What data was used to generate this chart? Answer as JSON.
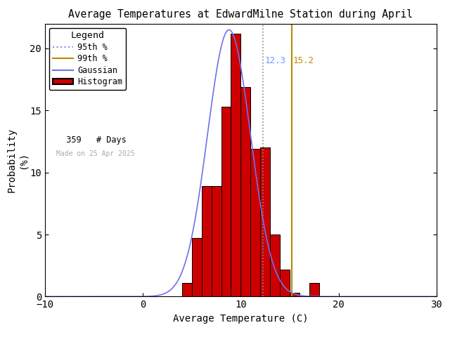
{
  "title": "Average Temperatures at EdwardMilne Station during April",
  "xlabel": "Average Temperature (C)",
  "ylabel": "Probability\n(%)",
  "xlim": [
    -10,
    30
  ],
  "ylim": [
    0,
    22
  ],
  "xticks": [
    -10,
    0,
    10,
    20,
    30
  ],
  "yticks": [
    0,
    5,
    10,
    15,
    20
  ],
  "bin_edges": [
    2,
    3,
    4,
    5,
    6,
    7,
    8,
    9,
    10,
    11,
    12,
    13,
    14,
    15,
    16,
    17,
    18
  ],
  "bin_heights": [
    0.0,
    0.0,
    1.1,
    4.7,
    8.9,
    8.9,
    15.3,
    21.2,
    16.9,
    11.9,
    12.0,
    5.0,
    2.2,
    0.3,
    0.0,
    1.1
  ],
  "hist_color": "#cc0000",
  "hist_edgecolor": "#000000",
  "gaussian_color": "#7070ee",
  "gaussian_mean": 8.8,
  "gaussian_std": 2.2,
  "gaussian_amplitude": 21.5,
  "p95_value": 12.3,
  "p99_value": 15.2,
  "p95_color": "#8888ff",
  "p99_color": "#bb8800",
  "p95_label_color": "#6699ff",
  "p99_label_color": "#bb8800",
  "n_days": 359,
  "watermark": "Made on 25 Apr 2025",
  "watermark_color": "#aaaaaa",
  "background_color": "#ffffff",
  "legend_title": "Legend",
  "figsize": [
    6.4,
    4.8
  ],
  "dpi": 100
}
